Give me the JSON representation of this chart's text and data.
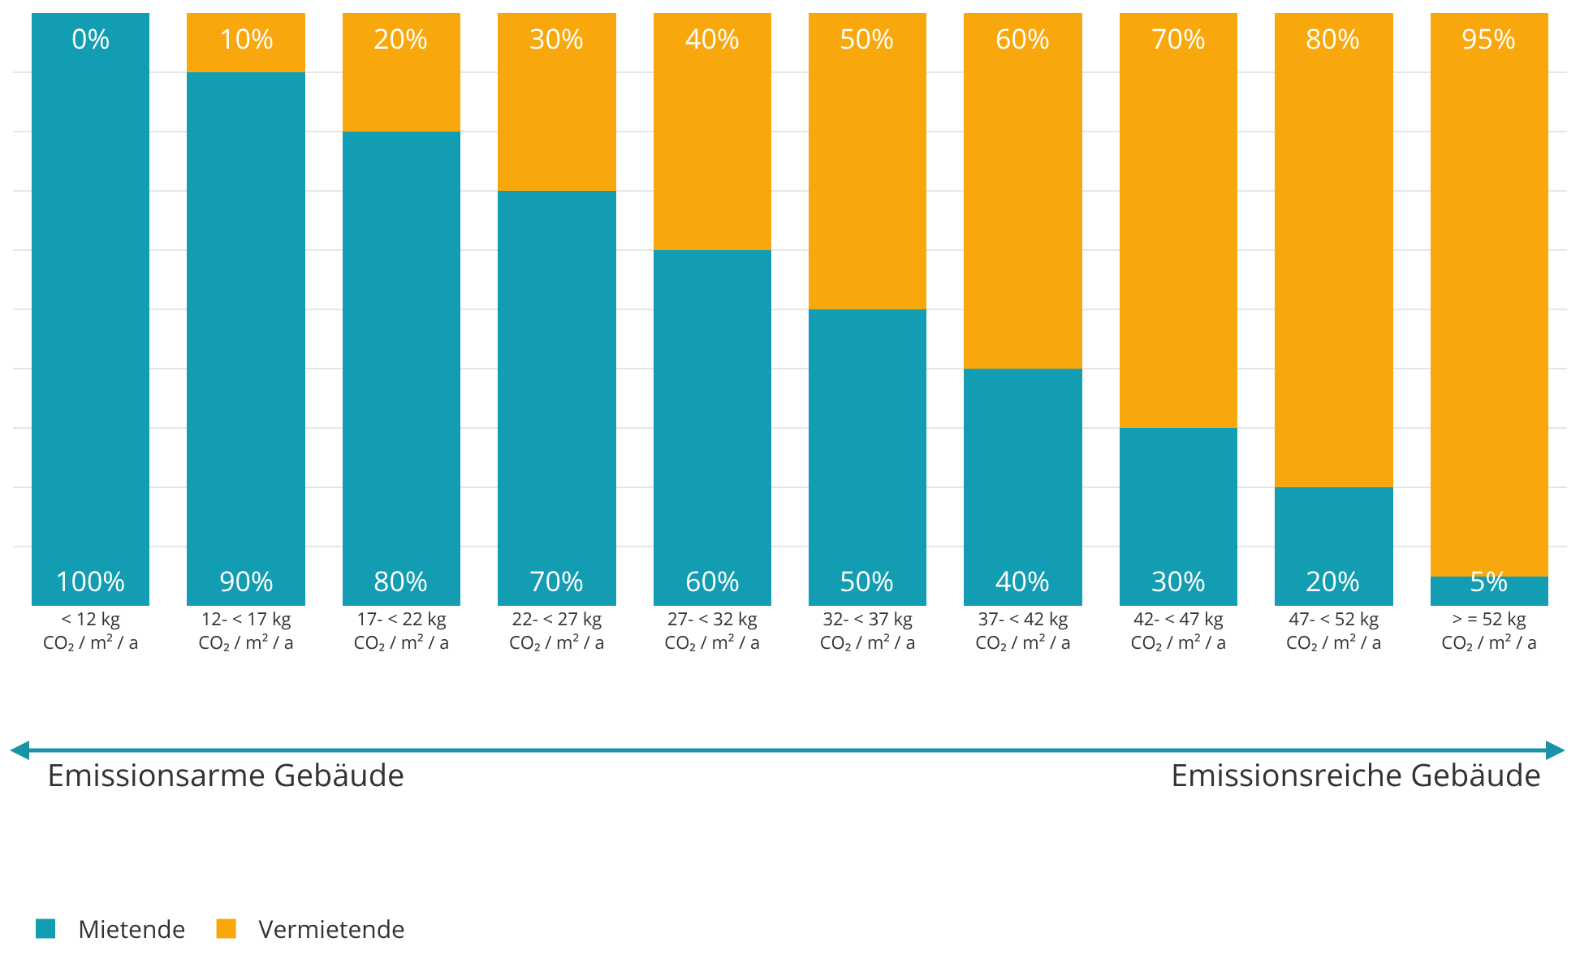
{
  "chart_data": {
    "type": "bar",
    "stacked": true,
    "categories": [
      "< 12 kg\nCO₂ / m² / a",
      "12- < 17 kg\nCO₂ / m² / a",
      "17- < 22 kg\nCO₂ / m² / a",
      "22- < 27 kg\nCO₂ / m² / a",
      "27- < 32 kg\nCO₂ / m² / a",
      "32- < 37 kg\nCO₂ / m² / a",
      "37- < 42 kg\nCO₂ / m² / a",
      "42- < 47 kg\nCO₂ / m² / a",
      "47- < 52 kg\nCO₂ / m² / a",
      "> = 52 kg\nCO₂ / m² / a"
    ],
    "series": [
      {
        "name": "Mietende",
        "color": "#129db3",
        "values": [
          100,
          90,
          80,
          70,
          60,
          50,
          40,
          30,
          20,
          5
        ],
        "value_labels": [
          "100%",
          "90%",
          "80%",
          "70%",
          "60%",
          "50%",
          "40%",
          "30%",
          "20%",
          "5%"
        ]
      },
      {
        "name": "Vermietende",
        "color": "#f8a80d",
        "values": [
          0,
          10,
          20,
          30,
          40,
          50,
          60,
          70,
          80,
          95
        ],
        "value_labels": [
          "0%",
          "10%",
          "20%",
          "30%",
          "40%",
          "50%",
          "60%",
          "70%",
          "80%",
          "95%"
        ]
      }
    ],
    "ylim": [
      0,
      100
    ],
    "yticks": [
      {
        "value": 10,
        "label": null
      },
      {
        "value": 20,
        "label": null
      },
      {
        "value": 30,
        "label": null
      },
      {
        "value": 40,
        "label": null
      },
      {
        "value": 50,
        "label": null
      },
      {
        "value": 60,
        "label": null
      },
      {
        "value": 70,
        "label": null
      },
      {
        "value": 80,
        "label": null
      },
      {
        "value": 90,
        "label": null
      }
    ],
    "grid": "y",
    "tick_labels": "x",
    "legend": "bottom left",
    "annotations": [
      "Emissionsarme Gebäude",
      "Emissionsreiche Gebäude"
    ]
  }
}
